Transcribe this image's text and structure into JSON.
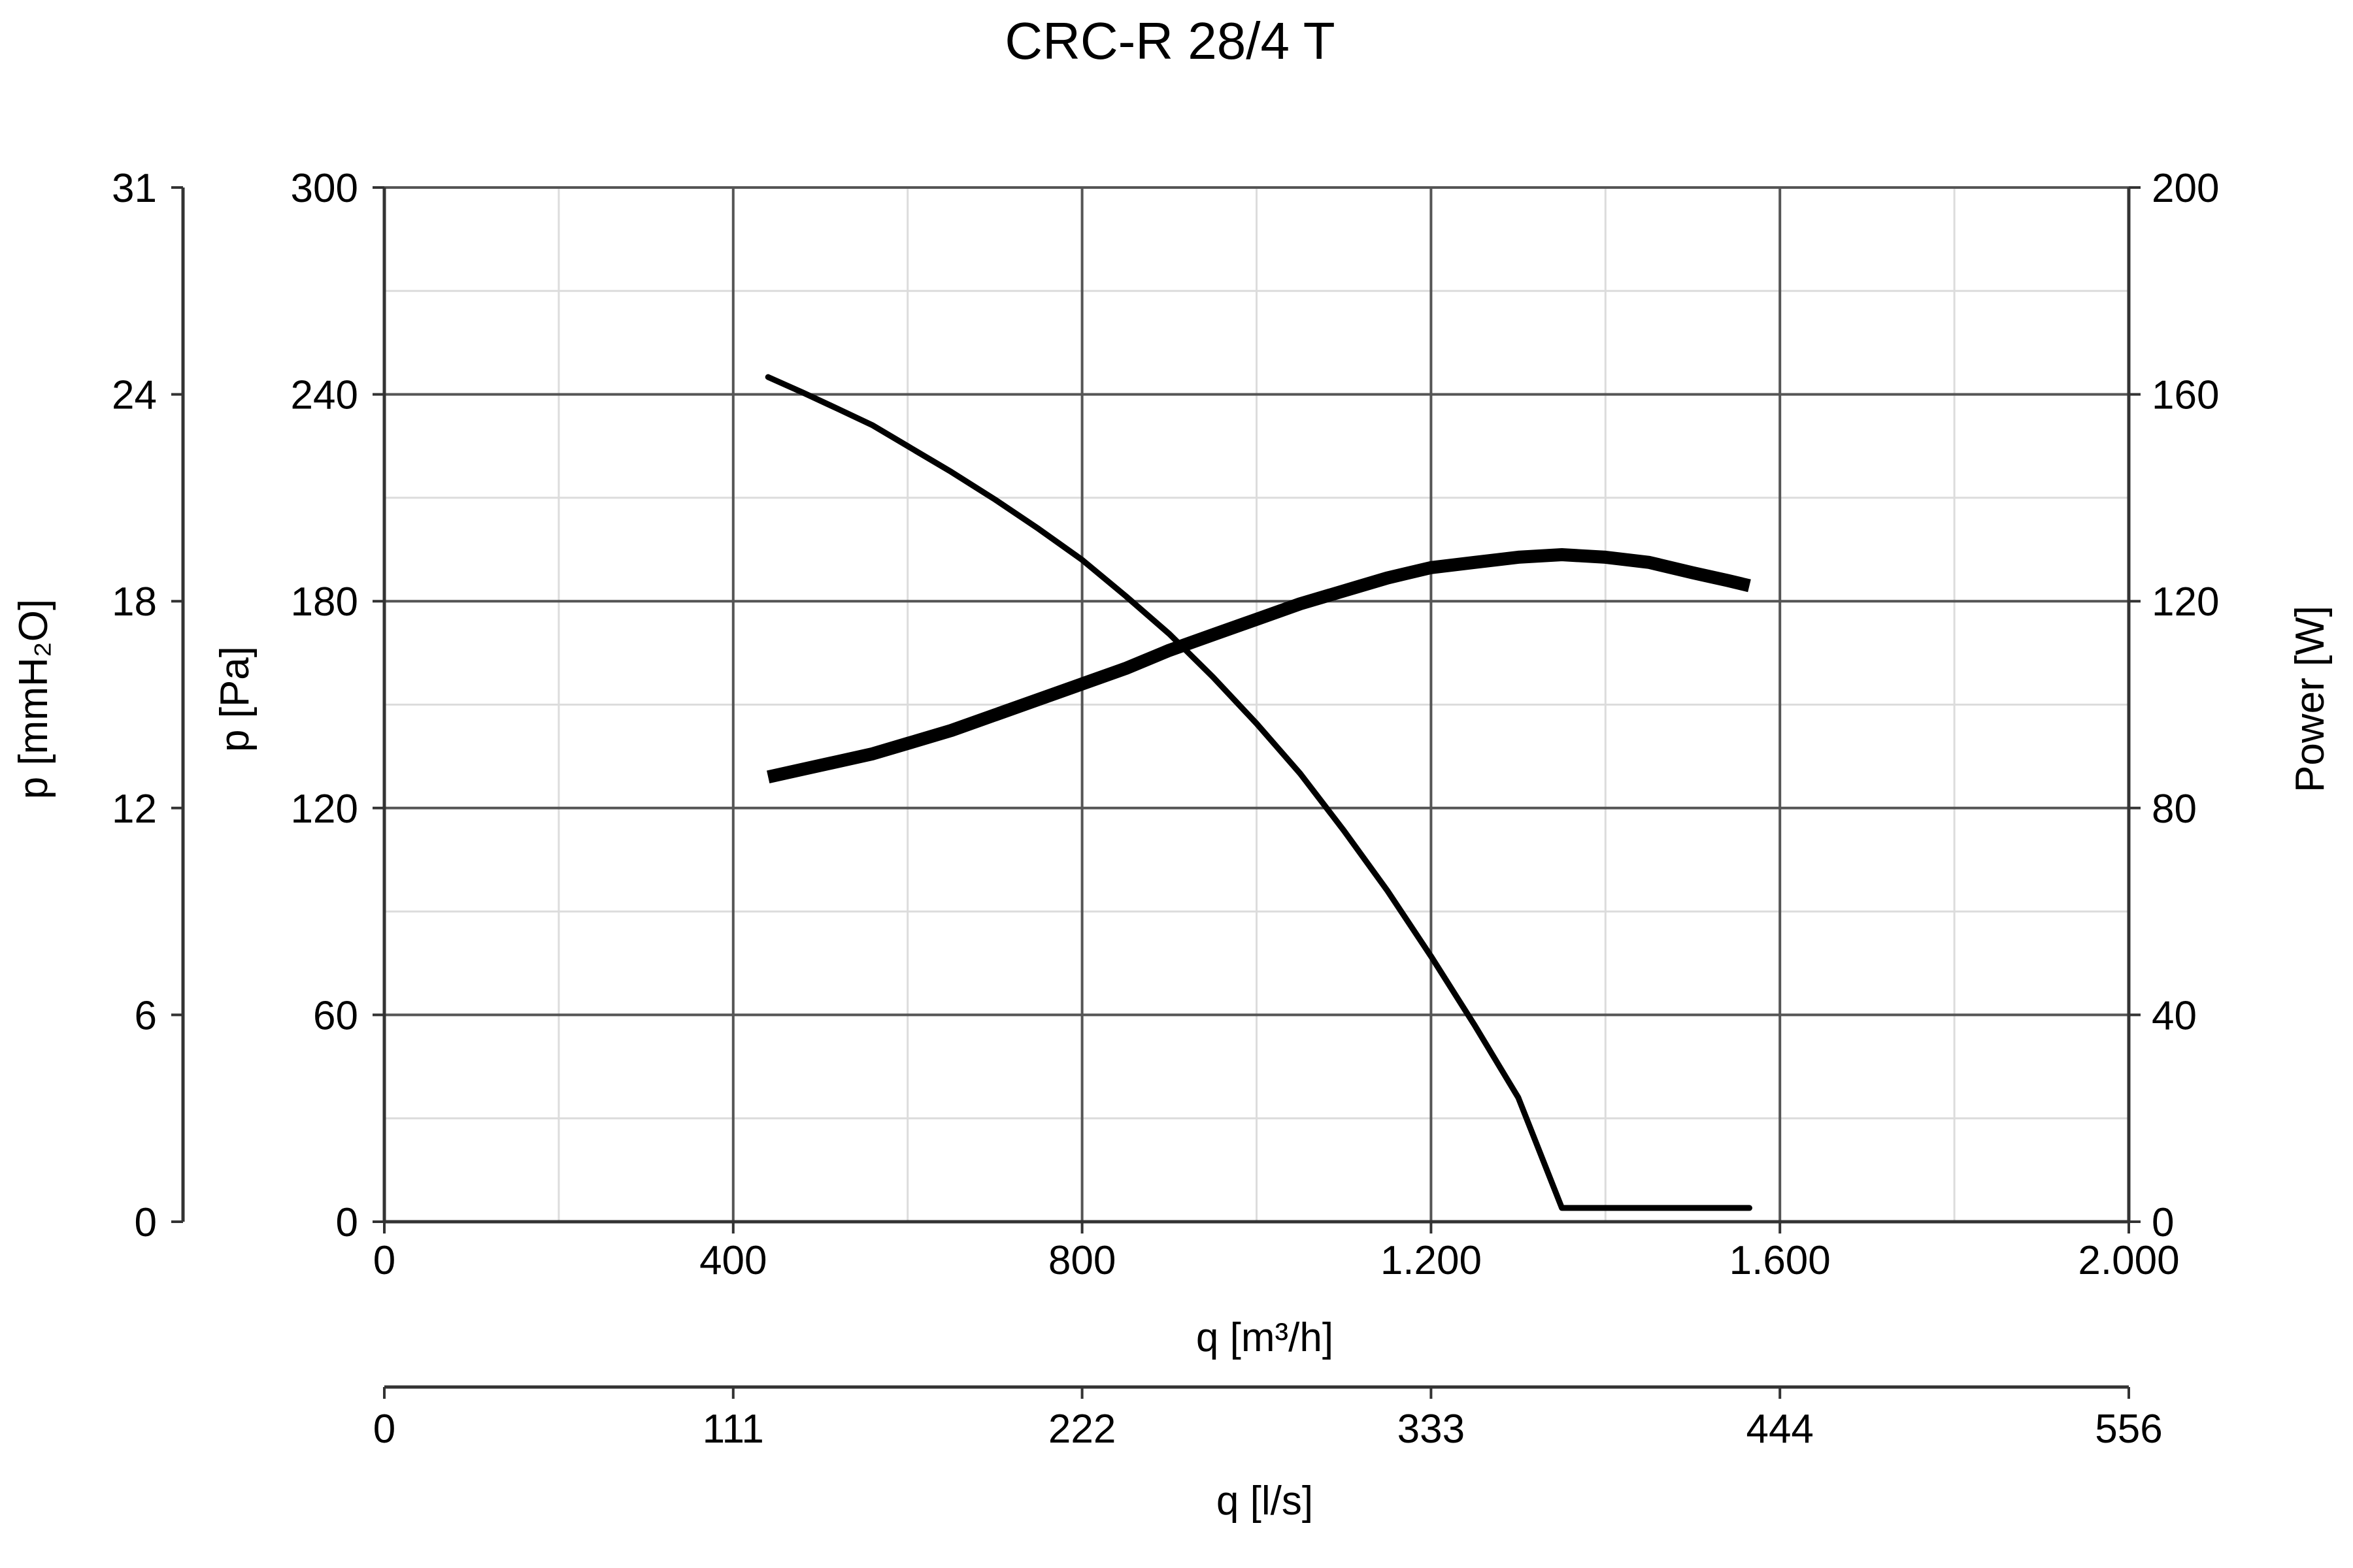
{
  "chart_data": {
    "type": "line",
    "title": "CRC-R 28/4 T",
    "x_axis": {
      "label": "q [m³/h]",
      "range": [
        0,
        2000
      ],
      "ticks": [
        0,
        400,
        800,
        1200,
        1600,
        2000
      ],
      "tick_labels": [
        "0",
        "400",
        "800",
        "1.200",
        "1.600",
        "2.000"
      ],
      "minor_step": 200
    },
    "x2_axis": {
      "label": "q [l/s]",
      "ticks": [
        0,
        400,
        800,
        1200,
        1600,
        2000
      ],
      "tick_labels": [
        "0",
        "111",
        "222",
        "333",
        "444",
        "556"
      ]
    },
    "y_axis": {
      "label": "p [Pa]",
      "range": [
        0,
        300
      ],
      "ticks": [
        0,
        60,
        120,
        180,
        240,
        300
      ],
      "tick_labels": [
        "0",
        "60",
        "120",
        "180",
        "240",
        "300"
      ],
      "minor_step": 30
    },
    "y_mmh2o_axis": {
      "label": "p [mmH₂O]",
      "ticks": [
        0,
        60,
        120,
        180,
        240,
        300
      ],
      "tick_labels": [
        "0",
        "6",
        "12",
        "18",
        "24",
        "31"
      ]
    },
    "y_power_axis": {
      "label": "Power [W]",
      "range": [
        0,
        200
      ],
      "ticks": [
        0,
        40,
        80,
        120,
        160,
        200
      ],
      "tick_labels": [
        "0",
        "40",
        "80",
        "120",
        "160",
        "200"
      ]
    },
    "grid": true,
    "series": [
      {
        "axis": "pressure",
        "x": [
          440,
          480,
          520,
          560,
          600,
          650,
          700,
          750,
          800,
          850,
          900,
          950,
          1000,
          1050,
          1100,
          1150,
          1200,
          1250,
          1300,
          1350,
          1400,
          1450,
          1500,
          1540,
          1565
        ],
        "y": [
          245,
          240,
          235,
          230,
          224,
          217,
          209,
          200,
          191,
          180,
          168,
          155,
          140,
          125,
          108,
          91,
          73,
          54,
          34,
          13,
          0,
          0,
          0,
          0,
          0
        ],
        "values_pa": [
          245,
          240.5,
          235.8,
          231,
          225,
          217.5,
          209.5,
          201,
          192,
          181.5,
          170.5,
          158,
          144.5,
          130,
          113.5,
          96,
          77,
          57,
          36,
          4,
          0,
          0,
          0,
          0,
          0
        ]
      },
      {
        "axis": "power",
        "x": [
          440,
          480,
          520,
          560,
          600,
          650,
          700,
          750,
          800,
          850,
          900,
          950,
          1000,
          1050,
          1100,
          1150,
          1200,
          1250,
          1300,
          1350,
          1400,
          1450,
          1500,
          1540,
          1565
        ],
        "y": [
          86,
          87.5,
          89,
          90.5,
          92.5,
          95,
          98,
          101,
          104,
          107,
          110.5,
          113.5,
          116.5,
          119.5,
          122,
          124.5,
          126.5,
          127.5,
          128.5,
          129,
          128.5,
          127.5,
          125.5,
          124,
          123
        ]
      }
    ]
  }
}
